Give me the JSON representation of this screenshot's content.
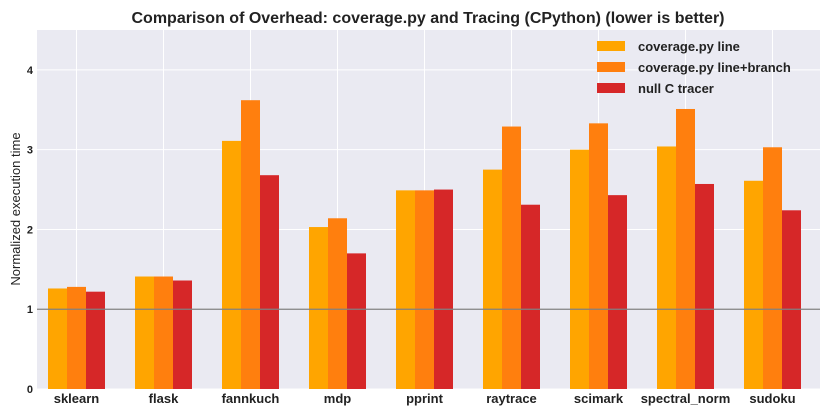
{
  "chart_data": {
    "type": "bar",
    "title": "Comparison of Overhead: coverage.py and Tracing (CPython) (lower is better)",
    "xlabel": "",
    "ylabel": "Normalized execution time",
    "ylim": [
      0,
      4.5
    ],
    "yticks": [
      0,
      1,
      2,
      3,
      4
    ],
    "reference_line": 1,
    "grid": true,
    "legend_position": "top-right",
    "categories": [
      "sklearn",
      "flask",
      "fannkuch",
      "mdp",
      "pprint",
      "raytrace",
      "scimark",
      "spectral_norm",
      "sudoku"
    ],
    "series": [
      {
        "name": "coverage.py line",
        "color": "#FFA500",
        "values": [
          1.26,
          1.41,
          3.11,
          2.03,
          2.49,
          2.75,
          3.0,
          3.04,
          2.61
        ]
      },
      {
        "name": "coverage.py line+branch",
        "color": "#FF7F0E",
        "values": [
          1.28,
          1.41,
          3.62,
          2.14,
          2.49,
          3.29,
          3.33,
          3.51,
          3.03
        ]
      },
      {
        "name": "null C tracer",
        "color": "#D62728",
        "values": [
          1.22,
          1.36,
          2.68,
          1.7,
          2.5,
          2.31,
          2.43,
          2.57,
          2.24
        ]
      }
    ]
  }
}
